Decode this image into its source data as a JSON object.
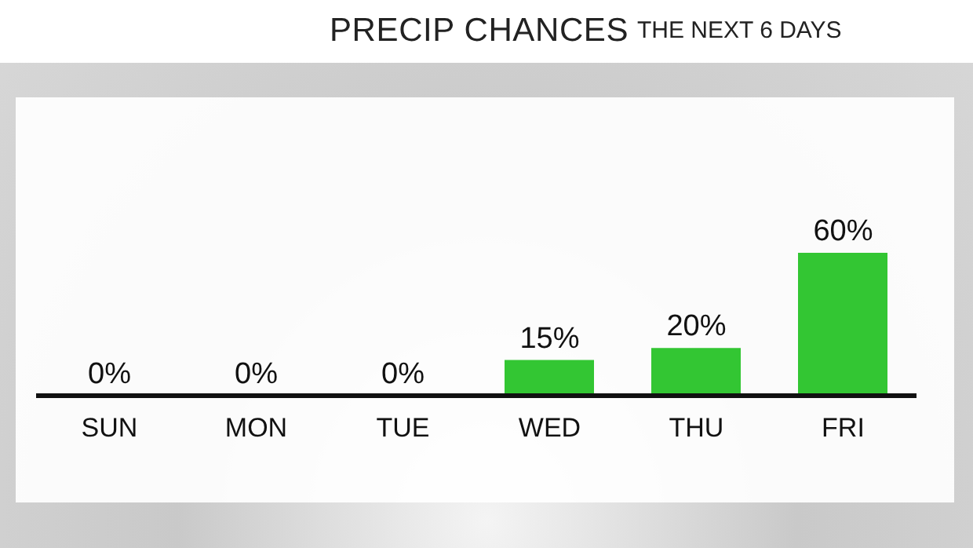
{
  "chart_data": {
    "type": "bar",
    "title": "PRECIP CHANCES",
    "subtitle": "THE NEXT 6 DAYS",
    "categories": [
      "SUN",
      "MON",
      "TUE",
      "WED",
      "THU",
      "FRI"
    ],
    "values": [
      0,
      0,
      0,
      15,
      20,
      60
    ],
    "value_labels": [
      "0%",
      "0%",
      "0%",
      "15%",
      "20%",
      "60%"
    ],
    "color": "#33c633",
    "grid": false,
    "legend": false
  }
}
